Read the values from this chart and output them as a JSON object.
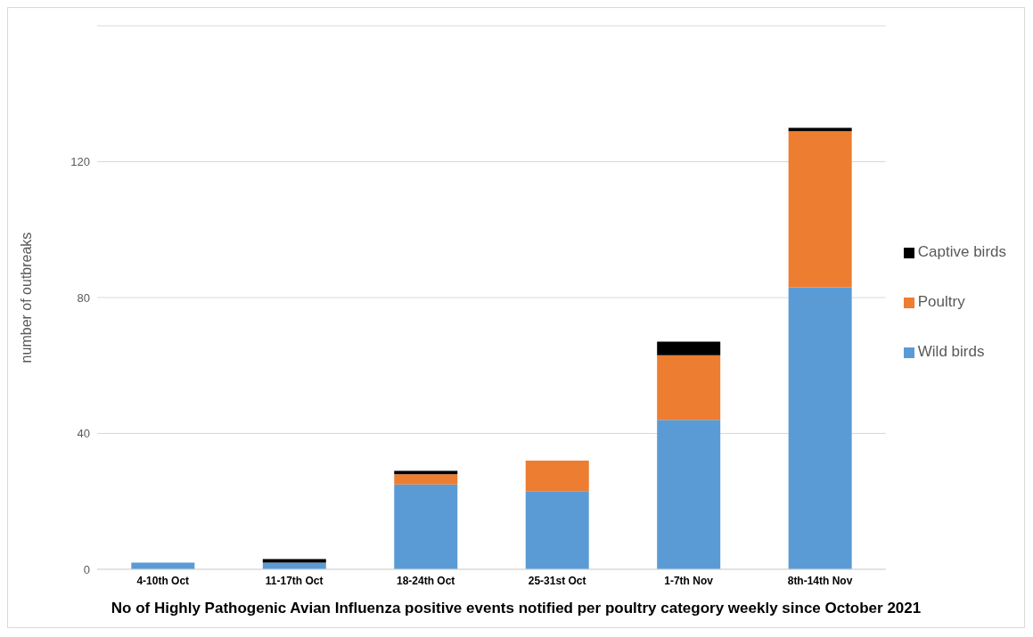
{
  "chart_data": {
    "type": "bar",
    "stacked": true,
    "title": "No of Highly Pathogenic Avian Influenza positive events notified per poultry category weekly since October 2021",
    "ylabel": "number of outbreaks",
    "categories": [
      "4-10th Oct",
      "11-17th Oct",
      "18-24th Oct",
      "25-31st Oct",
      "1-7th Nov",
      "8th-14th Nov"
    ],
    "series": [
      {
        "name": "Wild birds",
        "color": "#5b9bd5",
        "values": [
          2,
          2,
          25,
          23,
          44,
          83
        ]
      },
      {
        "name": "Poultry",
        "color": "#ed7d31",
        "values": [
          0,
          0,
          3,
          9,
          19,
          46
        ]
      },
      {
        "name": "Captive birds",
        "color": "#000000",
        "values": [
          0,
          1,
          1,
          0,
          4,
          1
        ]
      }
    ],
    "ylim": [
      0,
      160
    ],
    "yticks": [
      0,
      40,
      80,
      120
    ],
    "grid": "y",
    "legend": "right"
  }
}
